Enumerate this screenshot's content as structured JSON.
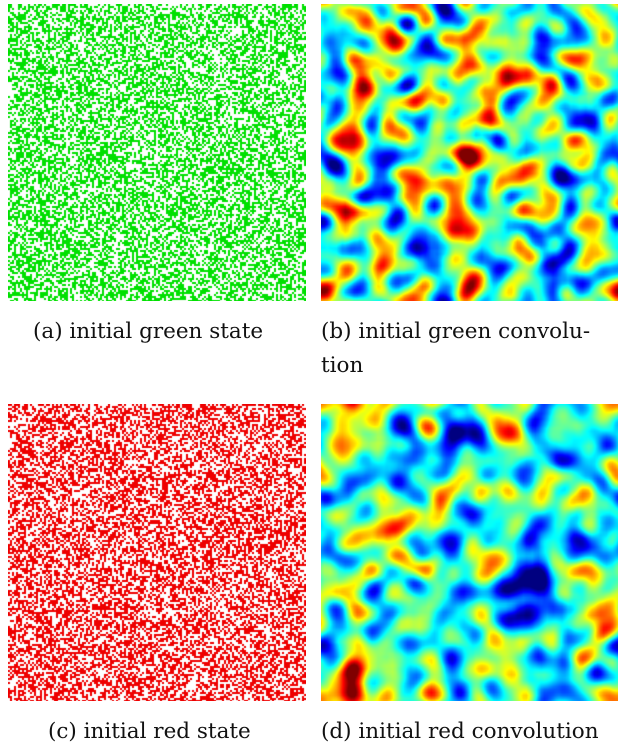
{
  "figure": {
    "panels": [
      {
        "id": "a",
        "caption": "(a) initial green state",
        "kind": "state",
        "color": "#00e000"
      },
      {
        "id": "b",
        "caption": "(b) initial green convolution",
        "caption_line1": "(b) initial green convolu-",
        "caption_line2": "tion",
        "kind": "convolution",
        "colormap": "jet"
      },
      {
        "id": "c",
        "caption": "(c) initial red state",
        "kind": "state",
        "color": "#ee0000"
      },
      {
        "id": "d",
        "caption": "(d) initial red convolution",
        "kind": "convolution",
        "colormap": "jet"
      }
    ]
  }
}
